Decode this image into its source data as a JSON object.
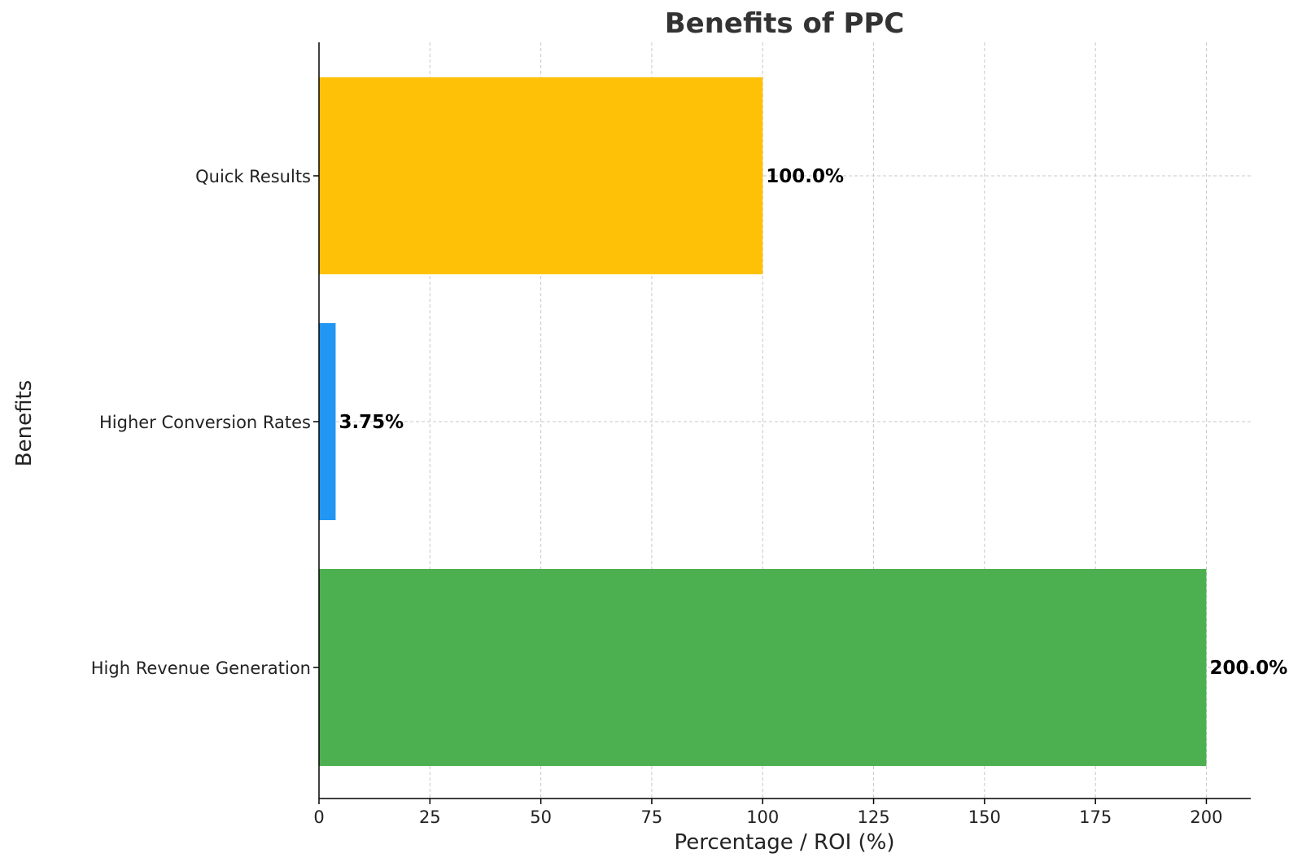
{
  "chart_data": {
    "type": "bar",
    "orientation": "horizontal",
    "title": "Benefits of PPC",
    "xlabel": "Percentage / ROI (%)",
    "ylabel": "Benefits",
    "categories": [
      "High Revenue Generation",
      "Higher Conversion Rates",
      "Quick Results"
    ],
    "values": [
      200,
      3.75,
      100
    ],
    "value_labels": [
      "200.0%",
      "3.75%",
      "100.0%"
    ],
    "colors": [
      "#4caf50",
      "#2196f3",
      "#ffc107"
    ],
    "xlim": [
      0,
      210
    ],
    "xticks": [
      0,
      25,
      50,
      75,
      100,
      125,
      150,
      175,
      200
    ],
    "xtick_labels": [
      "0",
      "25",
      "50",
      "75",
      "100",
      "125",
      "150",
      "175",
      "200"
    ],
    "grid": true
  }
}
